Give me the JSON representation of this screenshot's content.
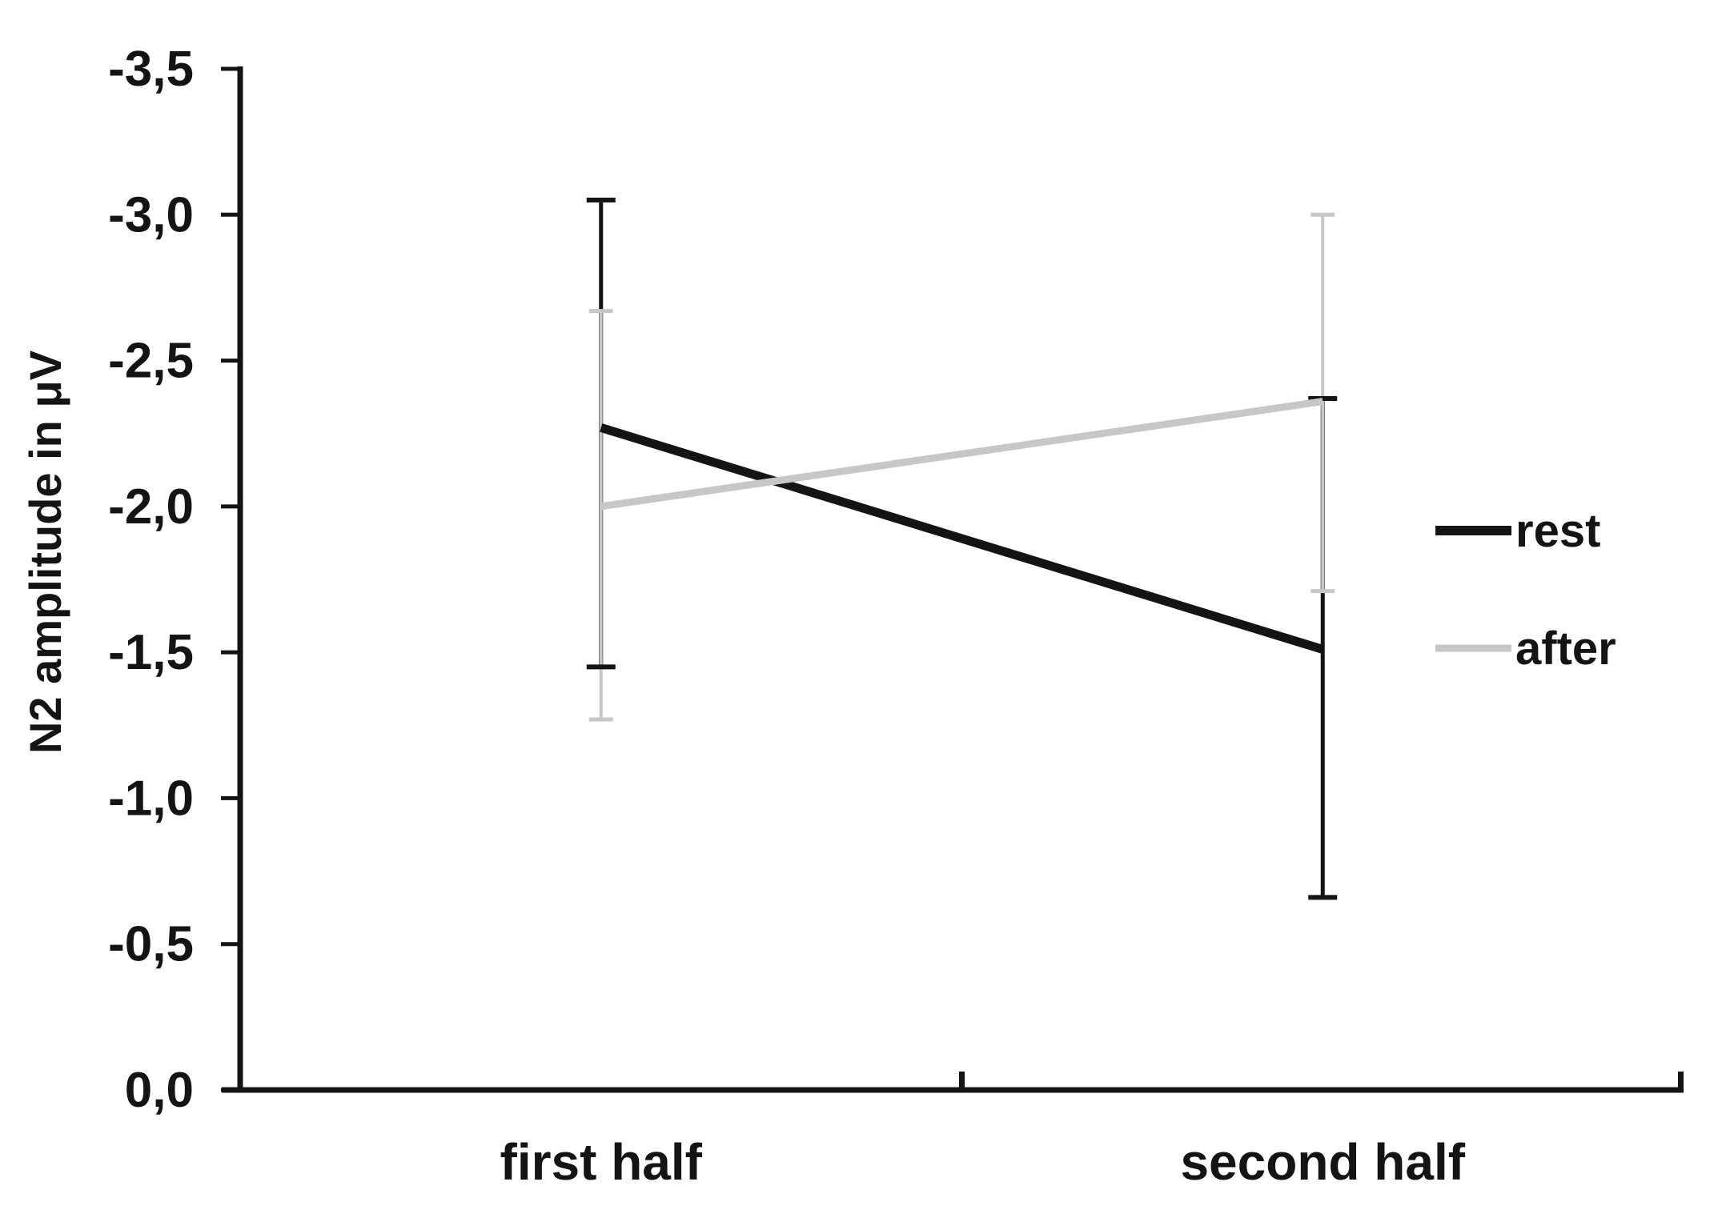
{
  "figure": {
    "background": "#ffffff",
    "axis_color": "#141414",
    "text_color": "#141414"
  },
  "chart_data": {
    "type": "line",
    "title": "",
    "xlabel": "",
    "ylabel": "N2 amplitude in μV",
    "categories": [
      "first half",
      "second half"
    ],
    "series": [
      {
        "name": "rest",
        "color": "#141414",
        "values": [
          -2.27,
          -1.51
        ],
        "error_bars": [
          {
            "upper": -3.05,
            "lower": -1.45
          },
          {
            "upper": -2.37,
            "lower": -0.66
          }
        ]
      },
      {
        "name": "after",
        "color": "#c7c7c7",
        "values": [
          -2.0,
          -2.36
        ],
        "error_bars": [
          {
            "upper": -2.67,
            "lower": -1.27
          },
          {
            "upper": -3.0,
            "lower": -1.71
          }
        ]
      }
    ],
    "y_ticks": [
      {
        "value": -3.5,
        "label": "-3,5"
      },
      {
        "value": -3.0,
        "label": "-3,0"
      },
      {
        "value": -2.5,
        "label": "-2,5"
      },
      {
        "value": -2.0,
        "label": "-2,0"
      },
      {
        "value": -1.5,
        "label": "-1,5"
      },
      {
        "value": -1.0,
        "label": "-1,0"
      },
      {
        "value": -0.5,
        "label": "-0,5"
      },
      {
        "value": 0.0,
        "label": "0,0"
      }
    ],
    "ylim": [
      -3.5,
      0.0
    ],
    "y_axis_note": "axis runs from 0,0 at bottom to -3,5 at top (negative up)",
    "grid": false,
    "legend": {
      "position": "right",
      "entries": [
        "rest",
        "after"
      ]
    }
  }
}
